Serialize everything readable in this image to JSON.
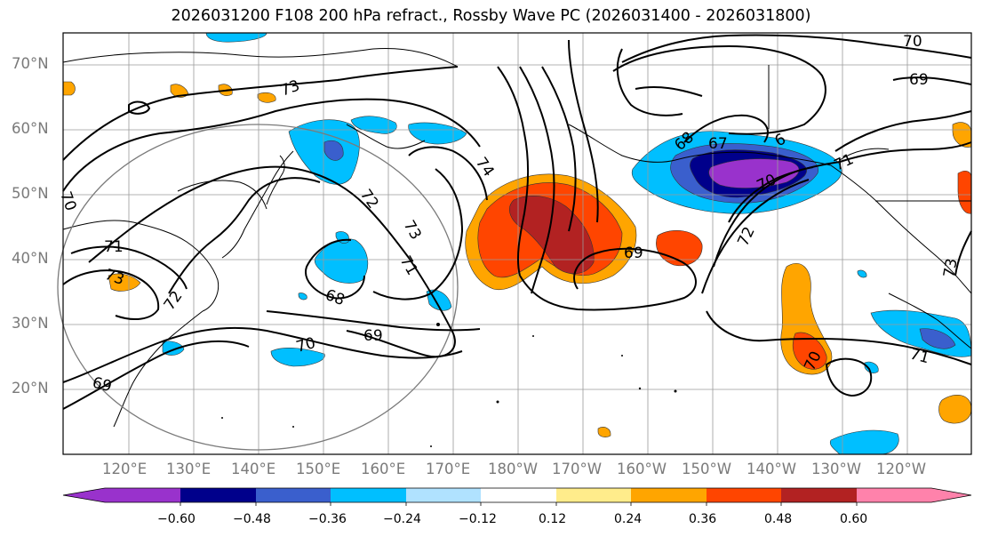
{
  "title": "2026031200 F108 200 hPa refract., Rossby Wave PC (2026031400 - 2026031800)",
  "map": {
    "latitude_labels": [
      "70°N",
      "60°N",
      "50°N",
      "40°N",
      "30°N",
      "20°N"
    ],
    "longitude_labels": [
      "120°E",
      "130°E",
      "140°E",
      "150°E",
      "160°E",
      "170°E",
      "180°W",
      "170°W",
      "160°W",
      "150°W",
      "140°W",
      "130°W",
      "120°W"
    ],
    "contour_labels": [
      {
        "text": "70"
      },
      {
        "text": "69"
      },
      {
        "text": "73"
      },
      {
        "text": "74"
      },
      {
        "text": "72"
      },
      {
        "text": "70"
      },
      {
        "text": "71"
      },
      {
        "text": "73"
      },
      {
        "text": "72"
      },
      {
        "text": "73"
      },
      {
        "text": "71"
      },
      {
        "text": "68"
      },
      {
        "text": "70"
      },
      {
        "text": "69"
      },
      {
        "text": "69"
      },
      {
        "text": "69"
      },
      {
        "text": "68"
      },
      {
        "text": "67"
      },
      {
        "text": "6"
      },
      {
        "text": "70"
      },
      {
        "text": "71"
      },
      {
        "text": "72"
      },
      {
        "text": "73"
      },
      {
        "text": "70"
      },
      {
        "text": "71"
      }
    ]
  },
  "colorbar": {
    "tick_labels": [
      "−0.60",
      "−0.48",
      "−0.36",
      "−0.24",
      "−0.12",
      "0.12",
      "0.24",
      "0.36",
      "0.48",
      "0.60"
    ],
    "colors": [
      "#9932cc",
      "#00008b",
      "#3a5fcd",
      "#00bfff",
      "#b0e2ff",
      "#ffffff",
      "#ffec8b",
      "#ffa500",
      "#ff4500",
      "#b22222",
      "#ff82ab"
    ]
  }
}
